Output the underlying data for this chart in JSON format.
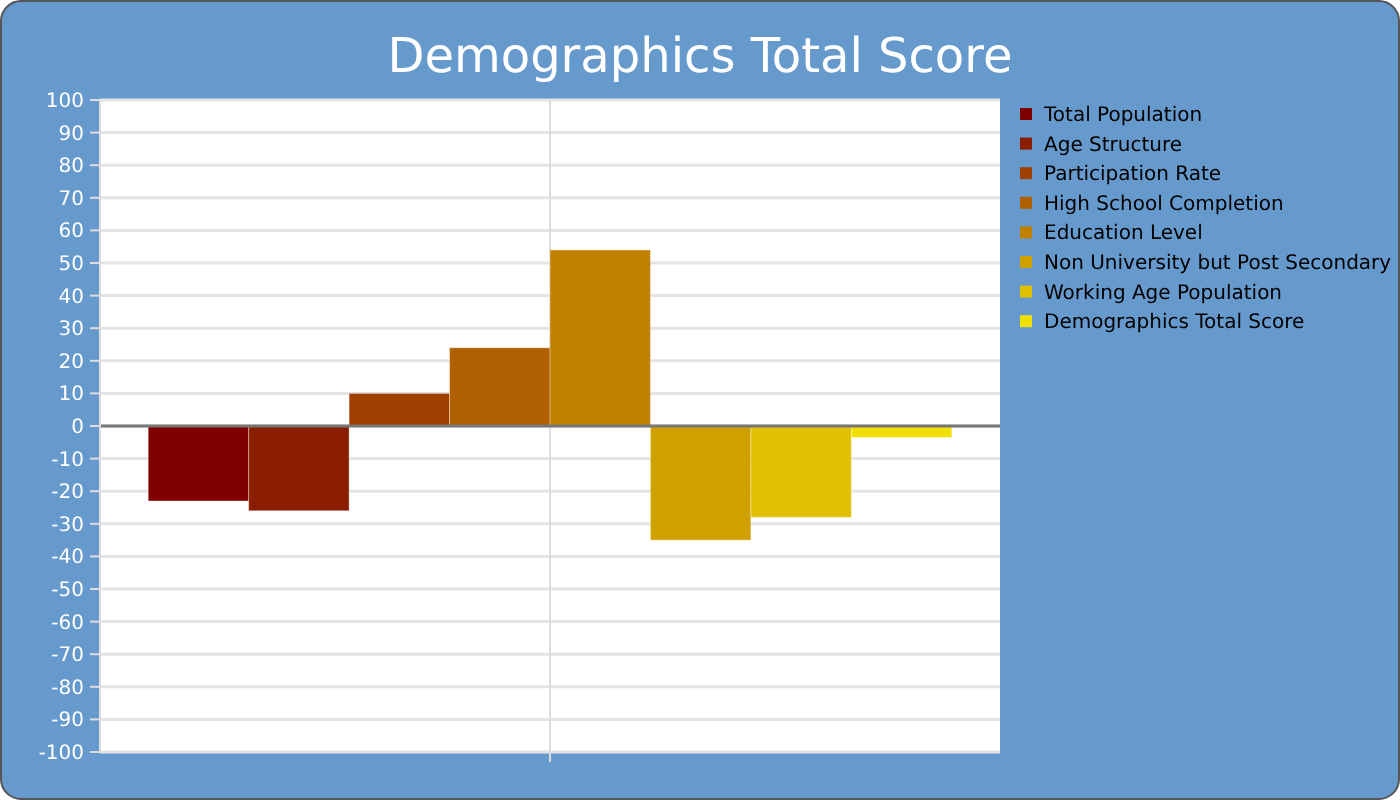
{
  "chart_data": {
    "type": "bar",
    "title": "Demographics Total Score",
    "categories": [
      null
    ],
    "series": [
      {
        "name": "Total Population",
        "color": "#800000",
        "values": [
          -23
        ]
      },
      {
        "name": "Age Structure",
        "color": "#8b1e00",
        "values": [
          -26
        ]
      },
      {
        "name": "Participation Rate",
        "color": "#a04000",
        "values": [
          10
        ]
      },
      {
        "name": "High School Completion",
        "color": "#b06000",
        "values": [
          24
        ]
      },
      {
        "name": "Education Level",
        "color": "#c08000",
        "values": [
          54
        ]
      },
      {
        "name": "Non University but Post Secondary",
        "color": "#d0a000",
        "values": [
          -35
        ]
      },
      {
        "name": "Working Age Population",
        "color": "#e0c000",
        "values": [
          -28
        ]
      },
      {
        "name": "Demographics Total Score",
        "color": "#f0e000",
        "values": [
          -3.5
        ]
      }
    ],
    "ylim": [
      -100,
      100
    ],
    "yticks": [
      -100,
      -90,
      -80,
      -70,
      -60,
      -50,
      -40,
      -30,
      -20,
      -10,
      0,
      10,
      20,
      30,
      40,
      50,
      60,
      70,
      80,
      90,
      100
    ],
    "grid": true,
    "legend": "right"
  }
}
